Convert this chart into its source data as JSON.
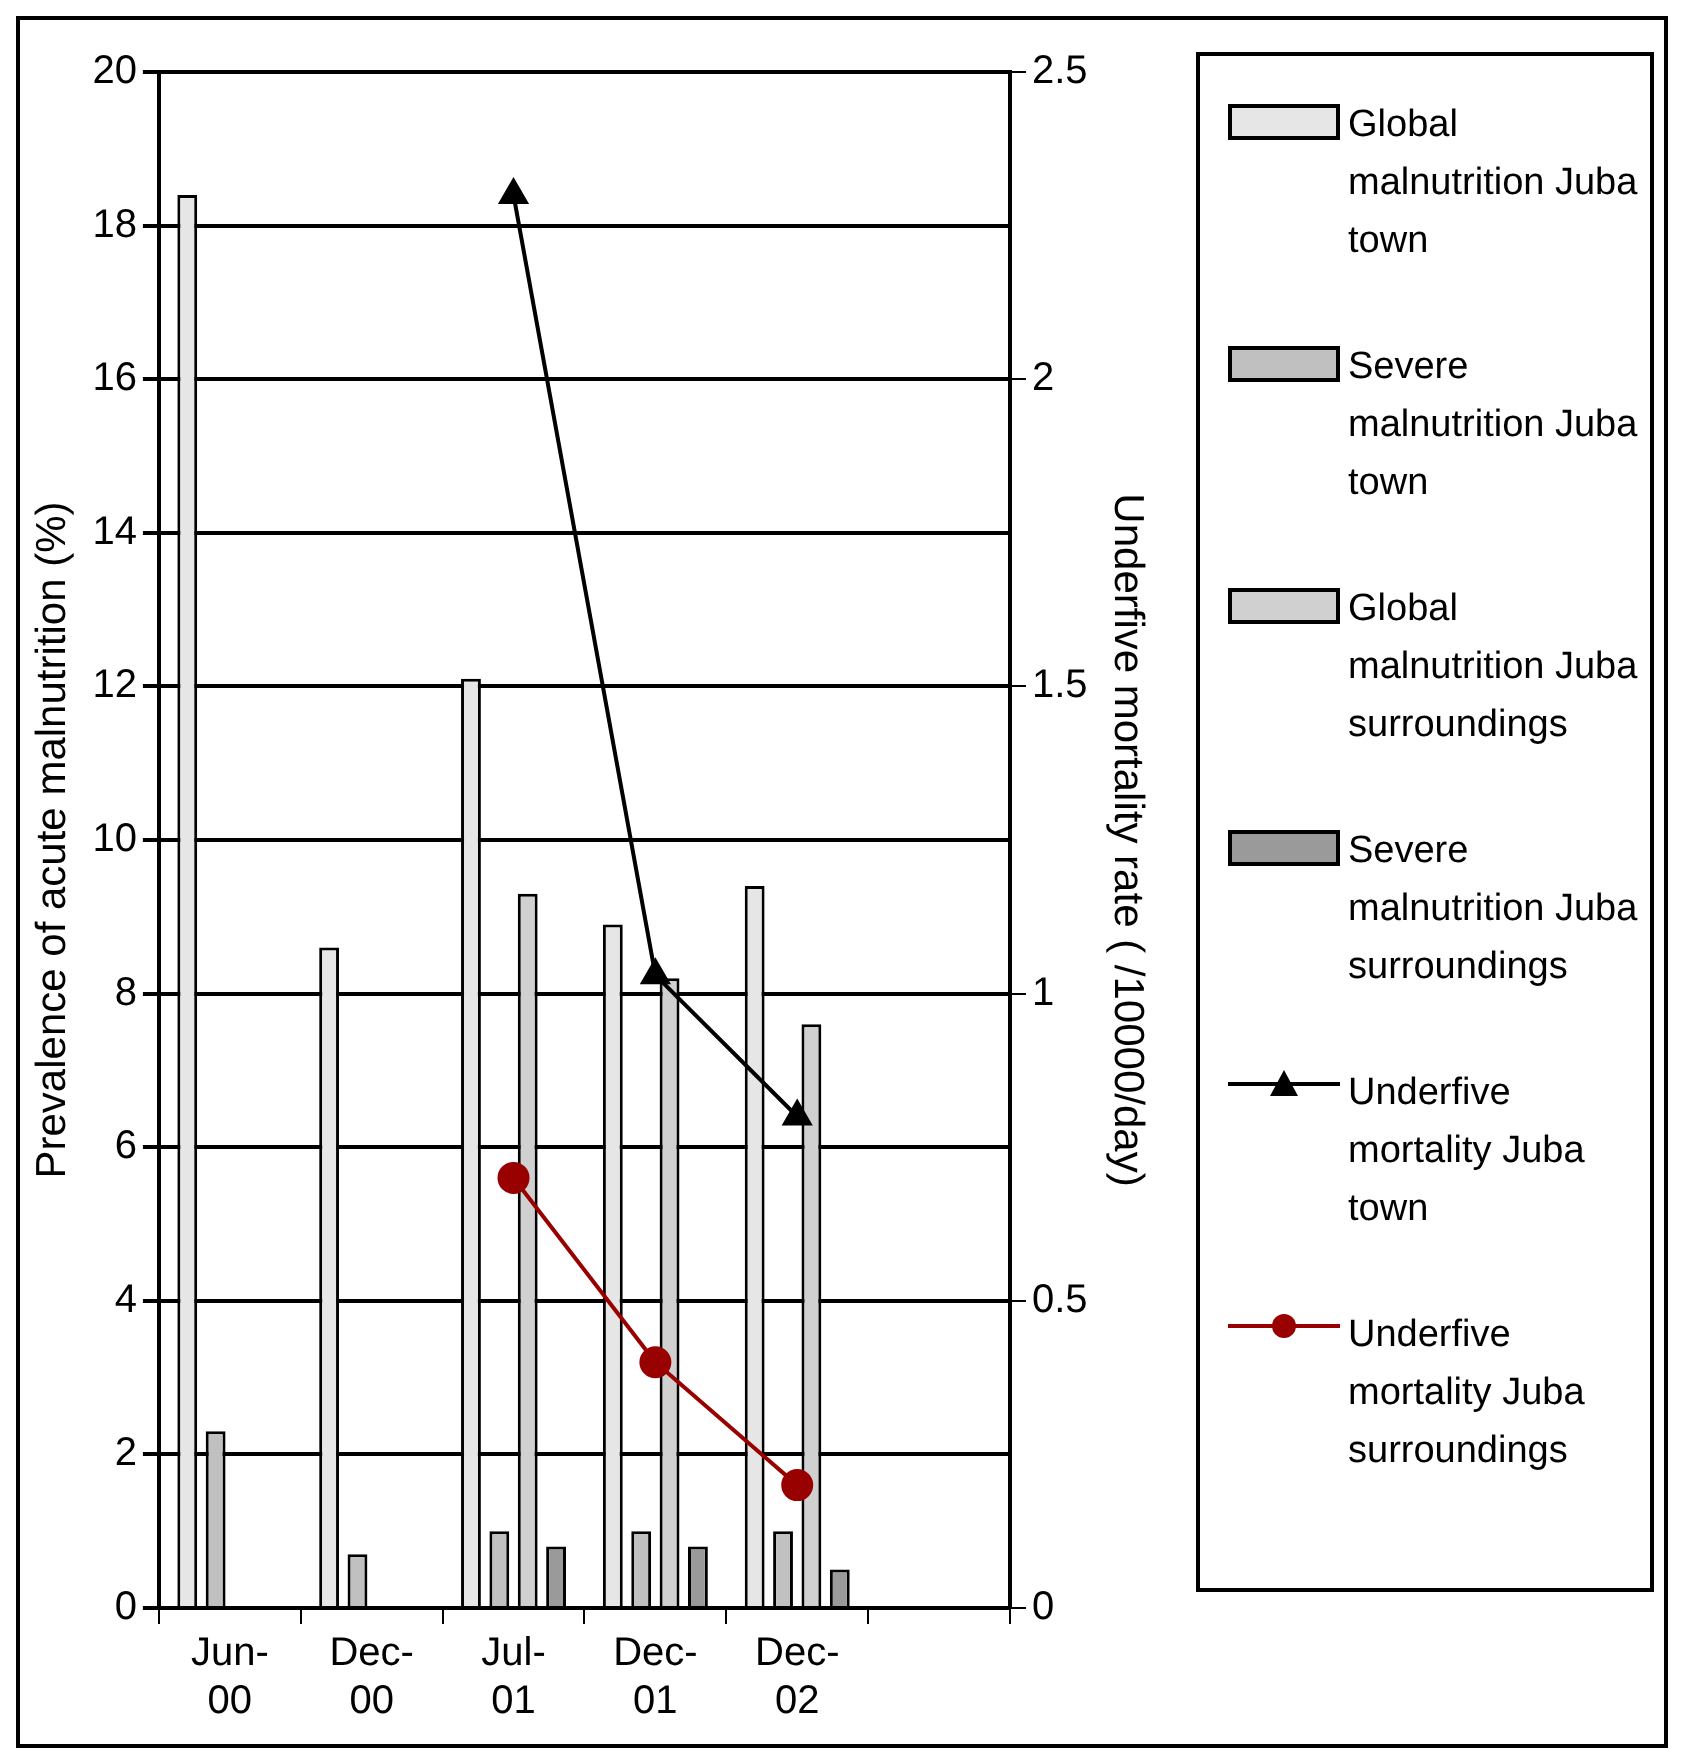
{
  "chart_data": {
    "type": "bar",
    "ylabel": "Prevalence of acute malnutrition (%)",
    "y2label": "Underfive mortality rate ( /10000/day)",
    "categories": [
      "Jun-00",
      "Dec-00",
      "Jul-01",
      "Dec-01",
      "Dec-02",
      null
    ],
    "series": [
      {
        "name": "Global malnutrition Juba town",
        "color": "#e6e6e6",
        "values": [
          18.4,
          8.6,
          12.1,
          8.9,
          9.4,
          null
        ]
      },
      {
        "name": "Severe malnutrition Juba town",
        "color": "#c0c0c0",
        "values": [
          2.3,
          0.7,
          1.0,
          1.0,
          1.0,
          null
        ]
      },
      {
        "name": "Global malnutrition Juba surroundings",
        "color": "#d0d0d0",
        "values": [
          null,
          null,
          9.3,
          8.2,
          7.6,
          null
        ]
      },
      {
        "name": "Severe malnutrition Juba surroundings",
        "color": "#9a9a9a",
        "values": [
          null,
          null,
          0.8,
          0.8,
          0.5,
          null
        ]
      },
      {
        "name": "Underfive mortality Juba town",
        "type": "line",
        "axis": "y2",
        "marker": "triangle",
        "color": "#000000",
        "values": [
          null,
          null,
          2.3,
          1.03,
          0.8,
          null
        ]
      },
      {
        "name": "Underfive mortality Juba surroundings",
        "type": "line",
        "axis": "y2",
        "marker": "circle",
        "color": "#990000",
        "values": [
          null,
          null,
          0.7,
          0.4,
          0.2,
          null
        ]
      }
    ],
    "ylim": [
      0,
      20
    ],
    "yticks": [
      0,
      2,
      4,
      6,
      8,
      10,
      12,
      14,
      16,
      18,
      20
    ],
    "y2lim": [
      0,
      2.5
    ],
    "y2ticks": [
      0,
      0.5,
      1,
      1.5,
      2,
      2.5
    ],
    "grid": "y",
    "legend": "right"
  }
}
